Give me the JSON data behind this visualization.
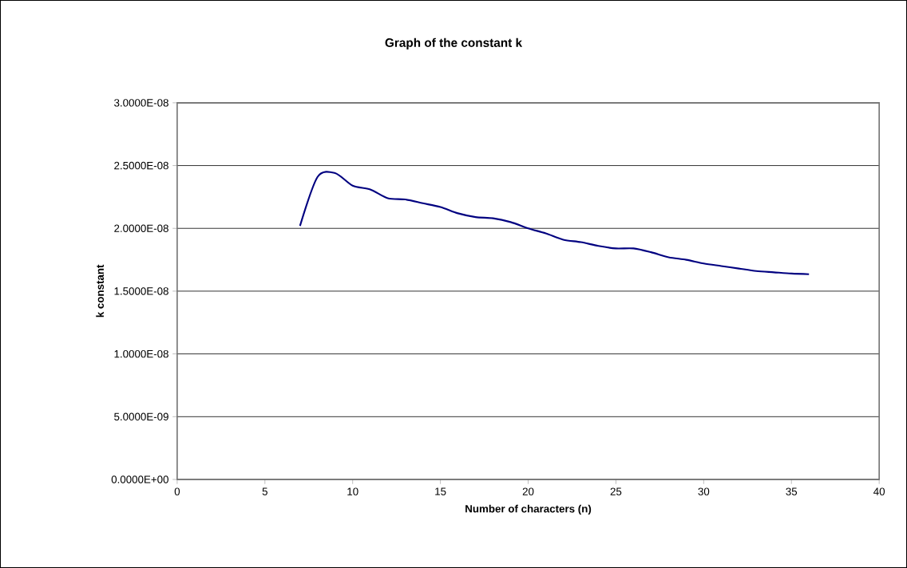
{
  "chart_data": {
    "type": "line",
    "title": "Graph of the constant k",
    "xlabel": "Number of characters (n)",
    "ylabel": "k constant",
    "x": [
      7,
      8,
      9,
      10,
      11,
      12,
      13,
      14,
      15,
      16,
      17,
      18,
      19,
      20,
      21,
      22,
      23,
      24,
      25,
      26,
      27,
      28,
      29,
      30,
      31,
      32,
      33,
      34,
      35,
      36
    ],
    "series": [
      {
        "color": "#000080",
        "values": [
          2.02e-08,
          2.41e-08,
          2.44e-08,
          2.34e-08,
          2.31e-08,
          2.24e-08,
          2.23e-08,
          2.2e-08,
          2.17e-08,
          2.12e-08,
          2.09e-08,
          2.08e-08,
          2.05e-08,
          2e-08,
          1.96e-08,
          1.91e-08,
          1.89e-08,
          1.86e-08,
          1.84e-08,
          1.84e-08,
          1.81e-08,
          1.77e-08,
          1.75e-08,
          1.72e-08,
          1.7e-08,
          1.68e-08,
          1.66e-08,
          1.65e-08,
          1.64e-08,
          1.635e-08
        ]
      }
    ],
    "xlim": [
      0,
      40
    ],
    "xticks": [
      0,
      5,
      10,
      15,
      20,
      25,
      30,
      35,
      40
    ],
    "ylim": [
      0,
      3e-08
    ],
    "yticks": [
      {
        "value": 0,
        "label": "0.0000E+00"
      },
      {
        "value": 5e-09,
        "label": "5.0000E-09"
      },
      {
        "value": 1e-08,
        "label": "1.0000E-08"
      },
      {
        "value": 1.5e-08,
        "label": "1.5000E-08"
      },
      {
        "value": 2e-08,
        "label": "2.0000E-08"
      },
      {
        "value": 2.5e-08,
        "label": "2.5000E-08"
      },
      {
        "value": 3e-08,
        "label": "3.0000E-08"
      }
    ],
    "grid": "y",
    "marker": "none",
    "line_style": "solid"
  }
}
